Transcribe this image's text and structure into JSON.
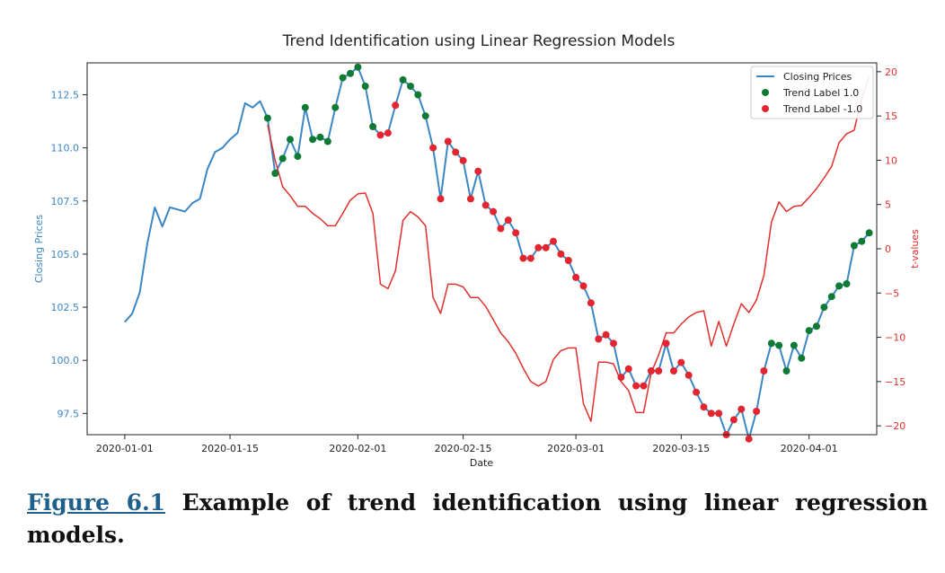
{
  "chart_data": {
    "type": "line",
    "title": "Trend Identification using Linear Regression Models",
    "xlabel": "Date",
    "ylabel_left": "Closing Prices",
    "ylabel_right": "t-values",
    "x_ticks": [
      "2020-01-01",
      "2020-01-15",
      "2020-02-01",
      "2020-02-15",
      "2020-03-01",
      "2020-03-15",
      "2020-04-01"
    ],
    "y_left_ticks": [
      "97.5",
      "100.0",
      "102.5",
      "105.0",
      "107.5",
      "110.0",
      "112.5"
    ],
    "y_right_ticks": [
      "−20",
      "−15",
      "−10",
      "−5",
      "0",
      "5",
      "10",
      "15",
      "20"
    ],
    "ylim_left": [
      96.5,
      114.0
    ],
    "ylim_right": [
      -21.0,
      21.0
    ],
    "xlim_days_from_first_tick": [
      -5,
      100
    ],
    "grid": false,
    "legend_position": "top-right",
    "colors": {
      "closing": "#3b87c5",
      "tvalues": "#e0302c",
      "label_pos": "#0f7a34",
      "label_neg": "#e2252f"
    },
    "series": [
      {
        "name": "Closing Prices",
        "role": "price",
        "points": [
          [
            "2020-01-01",
            101.8
          ],
          [
            "2020-01-02",
            102.2
          ],
          [
            "2020-01-03",
            103.2
          ],
          [
            "2020-01-04",
            105.5
          ],
          [
            "2020-01-05",
            107.2
          ],
          [
            "2020-01-06",
            106.3
          ],
          [
            "2020-01-07",
            107.2
          ],
          [
            "2020-01-08",
            107.1
          ],
          [
            "2020-01-09",
            107.0
          ],
          [
            "2020-01-10",
            107.4
          ],
          [
            "2020-01-11",
            107.6
          ],
          [
            "2020-01-12",
            109.0
          ],
          [
            "2020-01-13",
            109.8
          ],
          [
            "2020-01-14",
            110.0
          ],
          [
            "2020-01-15",
            110.4
          ],
          [
            "2020-01-16",
            110.7
          ],
          [
            "2020-01-17",
            112.1
          ],
          [
            "2020-01-18",
            111.9
          ],
          [
            "2020-01-19",
            112.2
          ],
          [
            "2020-01-20",
            111.4
          ],
          [
            "2020-01-21",
            108.8
          ],
          [
            "2020-01-22",
            109.5
          ],
          [
            "2020-01-23",
            110.4
          ],
          [
            "2020-01-24",
            109.6
          ],
          [
            "2020-01-25",
            111.9
          ],
          [
            "2020-01-26",
            110.4
          ],
          [
            "2020-01-27",
            110.5
          ],
          [
            "2020-01-28",
            110.3
          ],
          [
            "2020-01-29",
            111.9
          ],
          [
            "2020-01-30",
            113.3
          ],
          [
            "2020-01-31",
            113.5
          ],
          [
            "2020-02-01",
            113.8
          ],
          [
            "2020-02-02",
            112.9
          ],
          [
            "2020-02-03",
            111.0
          ],
          [
            "2020-02-04",
            110.6
          ],
          [
            "2020-02-05",
            110.7
          ],
          [
            "2020-02-06",
            112.0
          ],
          [
            "2020-02-07",
            113.2
          ],
          [
            "2020-02-08",
            112.9
          ],
          [
            "2020-02-09",
            112.5
          ],
          [
            "2020-02-10",
            111.5
          ],
          [
            "2020-02-11",
            110.0
          ],
          [
            "2020-02-12",
            107.6
          ],
          [
            "2020-02-13",
            110.3
          ],
          [
            "2020-02-14",
            109.8
          ],
          [
            "2020-02-15",
            109.4
          ],
          [
            "2020-02-16",
            107.6
          ],
          [
            "2020-02-17",
            108.9
          ],
          [
            "2020-02-18",
            107.3
          ],
          [
            "2020-02-19",
            107.0
          ],
          [
            "2020-02-20",
            106.2
          ],
          [
            "2020-02-21",
            106.6
          ],
          [
            "2020-02-22",
            106.0
          ],
          [
            "2020-02-23",
            104.8
          ],
          [
            "2020-02-24",
            104.8
          ],
          [
            "2020-02-25",
            105.3
          ],
          [
            "2020-02-26",
            105.3
          ],
          [
            "2020-02-27",
            105.6
          ],
          [
            "2020-02-28",
            105.0
          ],
          [
            "2020-02-29",
            104.7
          ],
          [
            "2020-03-01",
            103.9
          ],
          [
            "2020-03-02",
            103.5
          ],
          [
            "2020-03-03",
            102.7
          ],
          [
            "2020-03-04",
            101.0
          ],
          [
            "2020-03-05",
            101.2
          ],
          [
            "2020-03-06",
            100.8
          ],
          [
            "2020-03-07",
            99.2
          ],
          [
            "2020-03-08",
            99.6
          ],
          [
            "2020-03-09",
            98.8
          ],
          [
            "2020-03-10",
            98.8
          ],
          [
            "2020-03-11",
            99.5
          ],
          [
            "2020-03-12",
            99.5
          ],
          [
            "2020-03-13",
            100.8
          ],
          [
            "2020-03-14",
            99.5
          ],
          [
            "2020-03-15",
            99.9
          ],
          [
            "2020-03-16",
            99.3
          ],
          [
            "2020-03-17",
            98.5
          ],
          [
            "2020-03-18",
            97.8
          ],
          [
            "2020-03-19",
            97.5
          ],
          [
            "2020-03-20",
            97.5
          ],
          [
            "2020-03-21",
            96.5
          ],
          [
            "2020-03-22",
            97.2
          ],
          [
            "2020-03-23",
            97.7
          ],
          [
            "2020-03-24",
            96.3
          ],
          [
            "2020-03-25",
            97.6
          ],
          [
            "2020-03-26",
            99.5
          ],
          [
            "2020-03-27",
            100.8
          ],
          [
            "2020-03-28",
            100.7
          ],
          [
            "2020-03-29",
            99.5
          ],
          [
            "2020-03-30",
            100.7
          ],
          [
            "2020-03-31",
            100.1
          ],
          [
            "2020-04-01",
            101.4
          ],
          [
            "2020-04-02",
            101.6
          ],
          [
            "2020-04-03",
            102.5
          ],
          [
            "2020-04-04",
            103.0
          ],
          [
            "2020-04-05",
            103.5
          ],
          [
            "2020-04-06",
            103.6
          ],
          [
            "2020-04-07",
            105.4
          ],
          [
            "2020-04-08",
            105.6
          ],
          [
            "2020-04-09",
            106.0
          ]
        ]
      },
      {
        "name": "t-values",
        "role": "tvalue",
        "points": [
          [
            "2020-01-20",
            14.0
          ],
          [
            "2020-01-21",
            10.0
          ],
          [
            "2020-01-22",
            7.0
          ],
          [
            "2020-01-23",
            6.0
          ],
          [
            "2020-01-24",
            4.8
          ],
          [
            "2020-01-25",
            4.8
          ],
          [
            "2020-01-26",
            4.0
          ],
          [
            "2020-01-27",
            3.4
          ],
          [
            "2020-01-28",
            2.6
          ],
          [
            "2020-01-29",
            2.6
          ],
          [
            "2020-01-30",
            4.0
          ],
          [
            "2020-01-31",
            5.5
          ],
          [
            "2020-02-01",
            6.2
          ],
          [
            "2020-02-02",
            6.3
          ],
          [
            "2020-02-03",
            4.0
          ],
          [
            "2020-02-04",
            -4.0
          ],
          [
            "2020-02-05",
            -4.5
          ],
          [
            "2020-02-06",
            -2.5
          ],
          [
            "2020-02-07",
            3.2
          ],
          [
            "2020-02-08",
            4.2
          ],
          [
            "2020-02-09",
            3.6
          ],
          [
            "2020-02-10",
            2.6
          ],
          [
            "2020-02-11",
            -5.5
          ],
          [
            "2020-02-12",
            -7.3
          ],
          [
            "2020-02-13",
            -4.0
          ],
          [
            "2020-02-14",
            -4.0
          ],
          [
            "2020-02-15",
            -4.3
          ],
          [
            "2020-02-16",
            -5.5
          ],
          [
            "2020-02-17",
            -5.5
          ],
          [
            "2020-02-18",
            -6.5
          ],
          [
            "2020-02-19",
            -8.0
          ],
          [
            "2020-02-20",
            -9.5
          ],
          [
            "2020-02-21",
            -10.5
          ],
          [
            "2020-02-22",
            -11.8
          ],
          [
            "2020-02-23",
            -13.5
          ],
          [
            "2020-02-24",
            -15.0
          ],
          [
            "2020-02-25",
            -15.5
          ],
          [
            "2020-02-26",
            -15.0
          ],
          [
            "2020-02-27",
            -12.5
          ],
          [
            "2020-02-28",
            -11.5
          ],
          [
            "2020-02-29",
            -11.2
          ],
          [
            "2020-03-01",
            -11.2
          ],
          [
            "2020-03-02",
            -17.5
          ],
          [
            "2020-03-03",
            -19.5
          ],
          [
            "2020-03-04",
            -12.8
          ],
          [
            "2020-03-05",
            -12.8
          ],
          [
            "2020-03-06",
            -13.0
          ],
          [
            "2020-03-07",
            -15.0
          ],
          [
            "2020-03-08",
            -16.0
          ],
          [
            "2020-03-09",
            -18.5
          ],
          [
            "2020-03-10",
            -18.5
          ],
          [
            "2020-03-11",
            -14.0
          ],
          [
            "2020-03-12",
            -12.0
          ],
          [
            "2020-03-13",
            -9.5
          ],
          [
            "2020-03-14",
            -9.5
          ],
          [
            "2020-03-15",
            -8.5
          ],
          [
            "2020-03-16",
            -7.7
          ],
          [
            "2020-03-17",
            -7.2
          ],
          [
            "2020-03-18",
            -7.0
          ],
          [
            "2020-03-19",
            -11.0
          ],
          [
            "2020-03-20",
            -8.2
          ],
          [
            "2020-03-21",
            -11.0
          ],
          [
            "2020-03-22",
            -8.5
          ],
          [
            "2020-03-23",
            -6.2
          ],
          [
            "2020-03-24",
            -7.2
          ],
          [
            "2020-03-25",
            -5.8
          ],
          [
            "2020-03-26",
            -3.0
          ],
          [
            "2020-03-27",
            3.0
          ],
          [
            "2020-03-28",
            5.3
          ],
          [
            "2020-03-29",
            4.2
          ],
          [
            "2020-03-30",
            4.8
          ],
          [
            "2020-03-31",
            4.9
          ],
          [
            "2020-04-01",
            5.8
          ],
          [
            "2020-04-02",
            6.8
          ],
          [
            "2020-04-03",
            8.0
          ],
          [
            "2020-04-04",
            9.3
          ],
          [
            "2020-04-05",
            12.0
          ],
          [
            "2020-04-06",
            13.0
          ],
          [
            "2020-04-07",
            13.4
          ],
          [
            "2020-04-08",
            17.0
          ],
          [
            "2020-04-09",
            19.5
          ]
        ]
      },
      {
        "name": "Trend Label 1.0",
        "role": "label_pos",
        "points": [
          [
            "2020-01-20",
            111.4
          ],
          [
            "2020-01-21",
            108.8
          ],
          [
            "2020-01-22",
            109.5
          ],
          [
            "2020-01-23",
            110.4
          ],
          [
            "2020-01-24",
            109.6
          ],
          [
            "2020-01-25",
            111.9
          ],
          [
            "2020-01-26",
            110.4
          ],
          [
            "2020-01-27",
            110.5
          ],
          [
            "2020-01-28",
            110.3
          ],
          [
            "2020-01-29",
            111.9
          ],
          [
            "2020-01-30",
            113.3
          ],
          [
            "2020-01-31",
            113.5
          ],
          [
            "2020-02-01",
            113.8
          ],
          [
            "2020-02-02",
            112.9
          ],
          [
            "2020-02-03",
            111.0
          ],
          [
            "2020-02-07",
            113.2
          ],
          [
            "2020-02-08",
            112.9
          ],
          [
            "2020-02-09",
            112.5
          ],
          [
            "2020-02-10",
            111.5
          ],
          [
            "2020-03-27",
            100.8
          ],
          [
            "2020-03-28",
            100.7
          ],
          [
            "2020-03-29",
            99.5
          ],
          [
            "2020-03-30",
            100.7
          ],
          [
            "2020-03-31",
            100.1
          ],
          [
            "2020-04-01",
            101.4
          ],
          [
            "2020-04-02",
            101.6
          ],
          [
            "2020-04-03",
            102.5
          ],
          [
            "2020-04-04",
            103.0
          ],
          [
            "2020-04-05",
            103.5
          ],
          [
            "2020-04-06",
            103.6
          ],
          [
            "2020-04-07",
            105.4
          ],
          [
            "2020-04-08",
            105.6
          ],
          [
            "2020-04-09",
            106.0
          ]
        ]
      },
      {
        "name": "Trend Label -1.0",
        "role": "label_neg",
        "points": [
          [
            "2020-02-04",
            110.6
          ],
          [
            "2020-02-05",
            110.7
          ],
          [
            "2020-02-06",
            112.0
          ],
          [
            "2020-02-11",
            110.0
          ],
          [
            "2020-02-12",
            107.6
          ],
          [
            "2020-02-13",
            110.3
          ],
          [
            "2020-02-14",
            109.8
          ],
          [
            "2020-02-15",
            109.4
          ],
          [
            "2020-02-16",
            107.6
          ],
          [
            "2020-02-17",
            108.9
          ],
          [
            "2020-02-18",
            107.3
          ],
          [
            "2020-02-19",
            107.0
          ],
          [
            "2020-02-20",
            106.2
          ],
          [
            "2020-02-21",
            106.6
          ],
          [
            "2020-02-22",
            106.0
          ],
          [
            "2020-02-23",
            104.8
          ],
          [
            "2020-02-24",
            104.8
          ],
          [
            "2020-02-25",
            105.3
          ],
          [
            "2020-02-26",
            105.3
          ],
          [
            "2020-02-27",
            105.6
          ],
          [
            "2020-02-28",
            105.0
          ],
          [
            "2020-02-29",
            104.7
          ],
          [
            "2020-03-01",
            103.9
          ],
          [
            "2020-03-02",
            103.5
          ],
          [
            "2020-03-03",
            102.7
          ],
          [
            "2020-03-04",
            101.0
          ],
          [
            "2020-03-05",
            101.2
          ],
          [
            "2020-03-06",
            100.8
          ],
          [
            "2020-03-07",
            99.2
          ],
          [
            "2020-03-08",
            99.6
          ],
          [
            "2020-03-09",
            98.8
          ],
          [
            "2020-03-10",
            98.8
          ],
          [
            "2020-03-11",
            99.5
          ],
          [
            "2020-03-12",
            99.5
          ],
          [
            "2020-03-13",
            100.8
          ],
          [
            "2020-03-14",
            99.5
          ],
          [
            "2020-03-15",
            99.9
          ],
          [
            "2020-03-16",
            99.3
          ],
          [
            "2020-03-17",
            98.5
          ],
          [
            "2020-03-18",
            97.8
          ],
          [
            "2020-03-19",
            97.5
          ],
          [
            "2020-03-20",
            97.5
          ],
          [
            "2020-03-21",
            96.5
          ],
          [
            "2020-03-22",
            97.2
          ],
          [
            "2020-03-23",
            97.7
          ],
          [
            "2020-03-24",
            96.3
          ],
          [
            "2020-03-25",
            97.6
          ],
          [
            "2020-03-26",
            99.5
          ]
        ]
      }
    ]
  },
  "caption": {
    "figure_ref": "Figure 6.1",
    "text": " Example of trend identification using linear regression models."
  }
}
